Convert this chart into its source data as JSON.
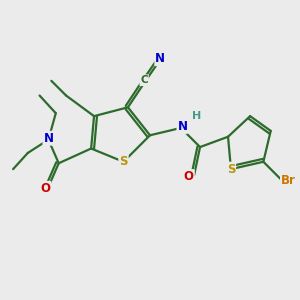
{
  "bg_color": "#ebebeb",
  "bond_color": "#2d6b2d",
  "atom_colors": {
    "S": "#b8960c",
    "N": "#0000cc",
    "O": "#cc0000",
    "C": "#2d6b2d",
    "Br": "#cc7700",
    "H": "#4a9a8a"
  }
}
